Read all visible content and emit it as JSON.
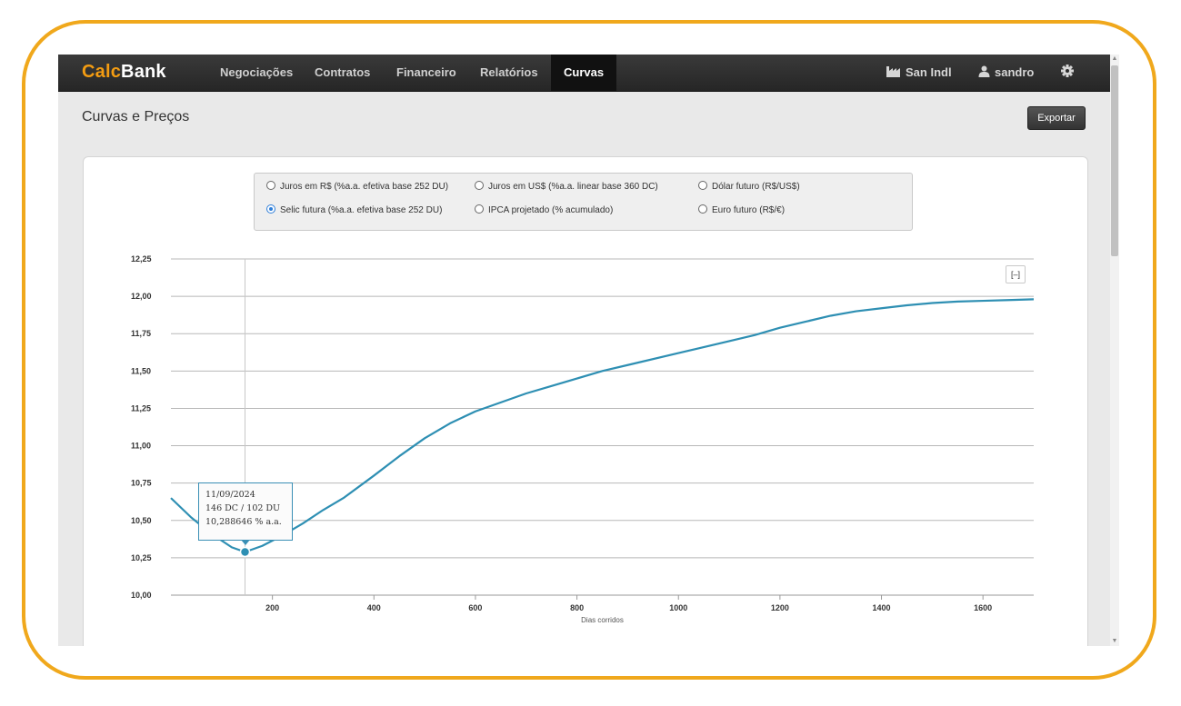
{
  "app": {
    "brand_part1": "Calc",
    "brand_part2": "Bank",
    "nav": [
      "Negociações",
      "Contratos",
      "Financeiro",
      "Relatórios",
      "Curvas"
    ],
    "active_nav": "Curvas",
    "company": "San Indl",
    "user": "sandro",
    "icons": [
      "factory-icon",
      "user-icon",
      "gear-icon"
    ]
  },
  "page": {
    "title": "Curvas e Preços",
    "export_label": "Exportar"
  },
  "curve_options": {
    "row1": [
      "Juros em R$ (%a.a. efetiva base 252 DU)",
      "Juros em US$ (%a.a. linear base 360 DC)",
      "Dólar futuro (R$/US$)"
    ],
    "row2": [
      "Selic futura (%a.a. efetiva base 252 DU)",
      "IPCA projetado (% acumulado)",
      "Euro futuro (R$/€)"
    ],
    "selected": "Selic futura (%a.a. efetiva base 252 DU)"
  },
  "chart_controls": {
    "reset_label": "[–]"
  },
  "tooltip": {
    "date": "11/09/2024",
    "days": "146 DC / 102 DU",
    "value": "10,288646 % a.a."
  },
  "chart_data": {
    "type": "line",
    "title": "",
    "xlabel": "Dias corridos",
    "ylabel": "",
    "xlim": [
      0,
      1700
    ],
    "ylim": [
      10.0,
      12.25
    ],
    "x_ticks": [
      200,
      400,
      600,
      800,
      1000,
      1200,
      1400,
      1600
    ],
    "x_tick_labels": [
      "200",
      "400",
      "600",
      "800",
      "1000",
      "1200",
      "1400",
      "1600"
    ],
    "y_ticks": [
      10.0,
      10.25,
      10.5,
      10.75,
      11.0,
      11.25,
      11.5,
      11.75,
      12.0,
      12.25
    ],
    "y_tick_labels": [
      "10,00",
      "10,25",
      "10,50",
      "10,75",
      "11,00",
      "11,25",
      "11,50",
      "11,75",
      "12,00",
      "12,25"
    ],
    "grid": true,
    "line_color": "#2e8fb3",
    "highlight_point": {
      "x": 146,
      "y": 10.288646
    },
    "series": [
      {
        "x": [
          0,
          40,
          80,
          120,
          146,
          180,
          220,
          260,
          300,
          340,
          400,
          450,
          500,
          550,
          600,
          650,
          700,
          750,
          800,
          850,
          900,
          1000,
          1100,
          1150,
          1200,
          1250,
          1300,
          1350,
          1400,
          1450,
          1500,
          1550,
          1600,
          1650,
          1700
        ],
        "y": [
          10.65,
          10.52,
          10.41,
          10.32,
          10.289,
          10.33,
          10.4,
          10.48,
          10.57,
          10.65,
          10.8,
          10.93,
          11.05,
          11.15,
          11.23,
          11.29,
          11.35,
          11.4,
          11.45,
          11.5,
          11.54,
          11.62,
          11.7,
          11.74,
          11.79,
          11.83,
          11.87,
          11.9,
          11.92,
          11.94,
          11.955,
          11.965,
          11.97,
          11.975,
          11.98
        ]
      }
    ]
  }
}
